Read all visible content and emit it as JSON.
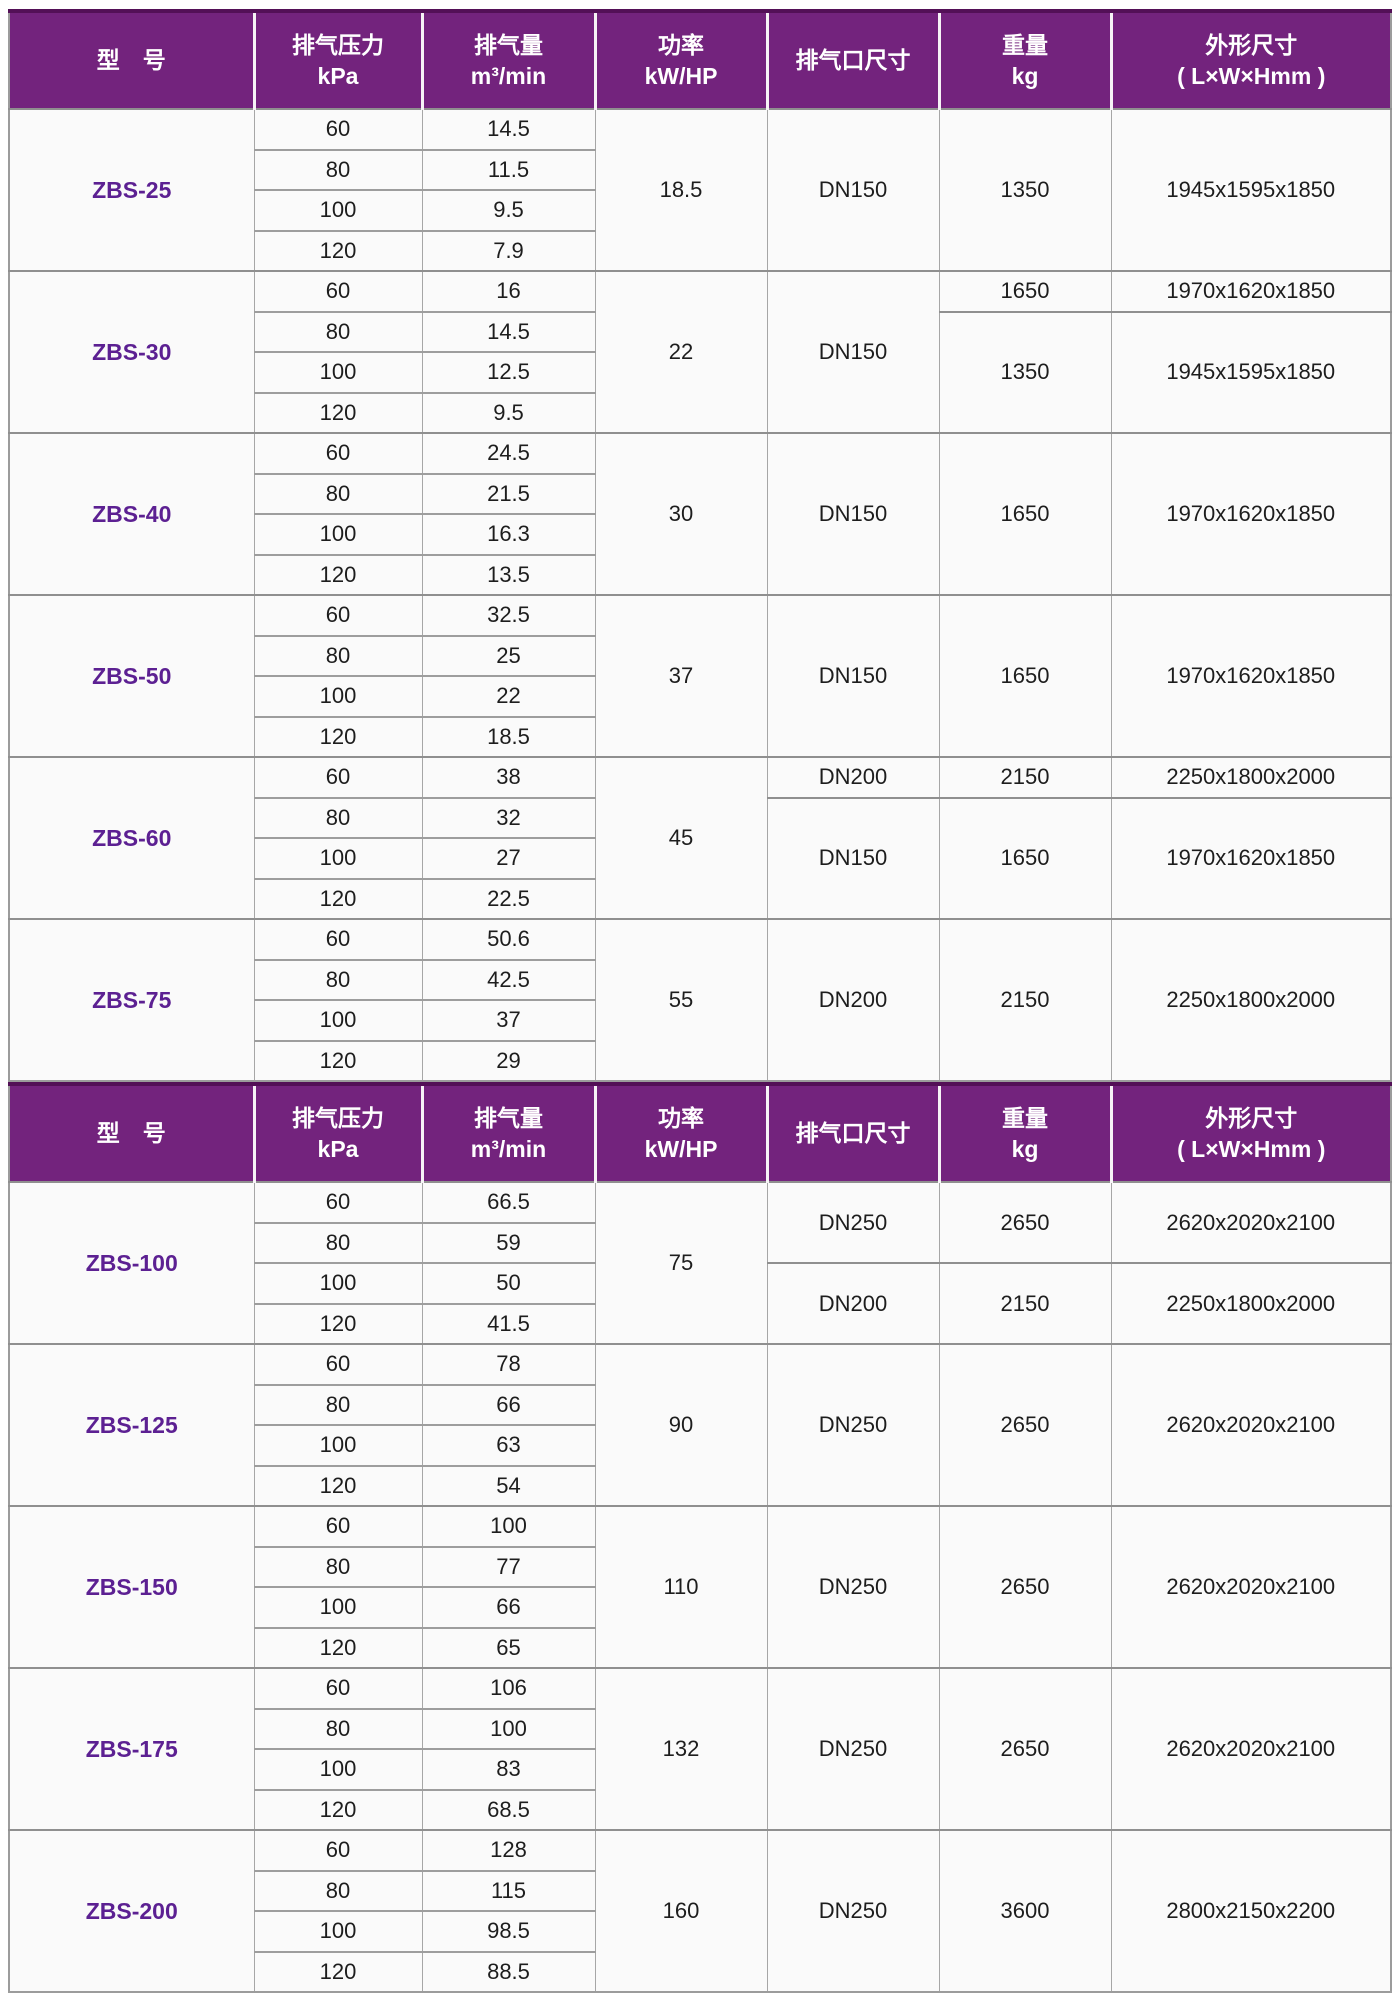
{
  "colors": {
    "header_bg": "#73237d",
    "header_text": "#ffffff",
    "model_text": "#5c2092",
    "cell_text": "#1d1d1d",
    "row_bg": "#fafafa",
    "grid_light": "#a6a6a6",
    "grid_dark": "#8f8f8f"
  },
  "header": {
    "model": "型　号",
    "pressure_line1": "排气压力",
    "pressure_line2": "kPa",
    "flow_line1": "排气量",
    "flow_line2": "m³/min",
    "power_line1": "功率",
    "power_line2": "kW/HP",
    "outlet": "排气口尺寸",
    "weight_line1": "重量",
    "weight_line2": "kg",
    "dims_line1": "外形尺寸",
    "dims_line2": "( L×W×Hmm )"
  },
  "sections": [
    {
      "models": [
        {
          "name": "ZBS-25",
          "power": "18.5",
          "rows": [
            {
              "kpa": "60",
              "flow": "14.5"
            },
            {
              "kpa": "80",
              "flow": "11.5"
            },
            {
              "kpa": "100",
              "flow": "9.5"
            },
            {
              "kpa": "120",
              "flow": "7.9"
            }
          ],
          "outlet_groups": [
            {
              "span": 4,
              "value": "DN150"
            }
          ],
          "weight_dim_groups": [
            {
              "span": 4,
              "weight": "1350",
              "dims": "1945x1595x1850"
            }
          ]
        },
        {
          "name": "ZBS-30",
          "power": "22",
          "rows": [
            {
              "kpa": "60",
              "flow": "16"
            },
            {
              "kpa": "80",
              "flow": "14.5"
            },
            {
              "kpa": "100",
              "flow": "12.5"
            },
            {
              "kpa": "120",
              "flow": "9.5"
            }
          ],
          "outlet_groups": [
            {
              "span": 4,
              "value": "DN150"
            }
          ],
          "weight_dim_groups": [
            {
              "span": 1,
              "weight": "1650",
              "dims": "1970x1620x1850"
            },
            {
              "span": 3,
              "weight": "1350",
              "dims": "1945x1595x1850"
            }
          ]
        },
        {
          "name": "ZBS-40",
          "power": "30",
          "rows": [
            {
              "kpa": "60",
              "flow": "24.5"
            },
            {
              "kpa": "80",
              "flow": "21.5"
            },
            {
              "kpa": "100",
              "flow": "16.3"
            },
            {
              "kpa": "120",
              "flow": "13.5"
            }
          ],
          "outlet_groups": [
            {
              "span": 4,
              "value": "DN150"
            }
          ],
          "weight_dim_groups": [
            {
              "span": 4,
              "weight": "1650",
              "dims": "1970x1620x1850"
            }
          ]
        },
        {
          "name": "ZBS-50",
          "power": "37",
          "rows": [
            {
              "kpa": "60",
              "flow": "32.5"
            },
            {
              "kpa": "80",
              "flow": "25"
            },
            {
              "kpa": "100",
              "flow": "22"
            },
            {
              "kpa": "120",
              "flow": "18.5"
            }
          ],
          "outlet_groups": [
            {
              "span": 4,
              "value": "DN150"
            }
          ],
          "weight_dim_groups": [
            {
              "span": 4,
              "weight": "1650",
              "dims": "1970x1620x1850"
            }
          ]
        },
        {
          "name": "ZBS-60",
          "power": "45",
          "rows": [
            {
              "kpa": "60",
              "flow": "38"
            },
            {
              "kpa": "80",
              "flow": "32"
            },
            {
              "kpa": "100",
              "flow": "27"
            },
            {
              "kpa": "120",
              "flow": "22.5"
            }
          ],
          "outlet_groups": [
            {
              "span": 1,
              "value": "DN200"
            },
            {
              "span": 3,
              "value": "DN150"
            }
          ],
          "weight_dim_groups": [
            {
              "span": 1,
              "weight": "2150",
              "dims": "2250x1800x2000"
            },
            {
              "span": 3,
              "weight": "1650",
              "dims": "1970x1620x1850"
            }
          ]
        },
        {
          "name": "ZBS-75",
          "power": "55",
          "rows": [
            {
              "kpa": "60",
              "flow": "50.6"
            },
            {
              "kpa": "80",
              "flow": "42.5"
            },
            {
              "kpa": "100",
              "flow": "37"
            },
            {
              "kpa": "120",
              "flow": "29"
            }
          ],
          "outlet_groups": [
            {
              "span": 4,
              "value": "DN200"
            }
          ],
          "weight_dim_groups": [
            {
              "span": 4,
              "weight": "2150",
              "dims": "2250x1800x2000"
            }
          ]
        }
      ]
    },
    {
      "models": [
        {
          "name": "ZBS-100",
          "power": "75",
          "rows": [
            {
              "kpa": "60",
              "flow": "66.5"
            },
            {
              "kpa": "80",
              "flow": "59"
            },
            {
              "kpa": "100",
              "flow": "50"
            },
            {
              "kpa": "120",
              "flow": "41.5"
            }
          ],
          "outlet_groups": [
            {
              "span": 2,
              "value": "DN250"
            },
            {
              "span": 2,
              "value": "DN200"
            }
          ],
          "weight_dim_groups": [
            {
              "span": 2,
              "weight": "2650",
              "dims": "2620x2020x2100"
            },
            {
              "span": 2,
              "weight": "2150",
              "dims": "2250x1800x2000"
            }
          ]
        },
        {
          "name": "ZBS-125",
          "power": "90",
          "rows": [
            {
              "kpa": "60",
              "flow": "78"
            },
            {
              "kpa": "80",
              "flow": "66"
            },
            {
              "kpa": "100",
              "flow": "63"
            },
            {
              "kpa": "120",
              "flow": "54"
            }
          ],
          "outlet_groups": [
            {
              "span": 4,
              "value": "DN250"
            }
          ],
          "weight_dim_groups": [
            {
              "span": 4,
              "weight": "2650",
              "dims": "2620x2020x2100"
            }
          ]
        },
        {
          "name": "ZBS-150",
          "power": "110",
          "rows": [
            {
              "kpa": "60",
              "flow": "100"
            },
            {
              "kpa": "80",
              "flow": "77"
            },
            {
              "kpa": "100",
              "flow": "66"
            },
            {
              "kpa": "120",
              "flow": "65"
            }
          ],
          "outlet_groups": [
            {
              "span": 4,
              "value": "DN250"
            }
          ],
          "weight_dim_groups": [
            {
              "span": 4,
              "weight": "2650",
              "dims": "2620x2020x2100"
            }
          ]
        },
        {
          "name": "ZBS-175",
          "power": "132",
          "rows": [
            {
              "kpa": "60",
              "flow": "106"
            },
            {
              "kpa": "80",
              "flow": "100"
            },
            {
              "kpa": "100",
              "flow": "83"
            },
            {
              "kpa": "120",
              "flow": "68.5"
            }
          ],
          "outlet_groups": [
            {
              "span": 4,
              "value": "DN250"
            }
          ],
          "weight_dim_groups": [
            {
              "span": 4,
              "weight": "2650",
              "dims": "2620x2020x2100"
            }
          ]
        },
        {
          "name": "ZBS-200",
          "power": "160",
          "rows": [
            {
              "kpa": "60",
              "flow": "128"
            },
            {
              "kpa": "80",
              "flow": "115"
            },
            {
              "kpa": "100",
              "flow": "98.5"
            },
            {
              "kpa": "120",
              "flow": "88.5"
            }
          ],
          "outlet_groups": [
            {
              "span": 4,
              "value": "DN250"
            }
          ],
          "weight_dim_groups": [
            {
              "span": 4,
              "weight": "3600",
              "dims": "2800x2150x2200"
            }
          ]
        }
      ]
    }
  ]
}
